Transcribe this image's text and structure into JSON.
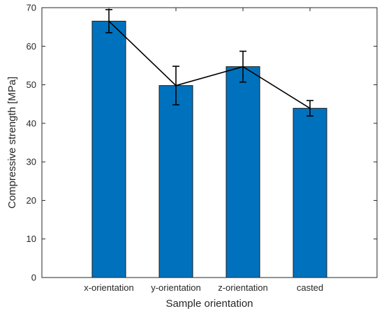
{
  "chart_data": {
    "type": "bar",
    "categories": [
      "x-orientation",
      "y-orientation",
      "z-orientation",
      "casted"
    ],
    "values": [
      66.5,
      49.8,
      54.7,
      43.9
    ],
    "error_low": [
      63.5,
      44.8,
      50.7,
      41.9
    ],
    "error_high": [
      69.5,
      54.8,
      58.7,
      45.9
    ],
    "line_overlay": true,
    "xlabel": "Sample orientation",
    "ylabel": "Compressive strength [MPa]",
    "ylim": [
      0,
      70
    ],
    "yticks": [
      "0",
      "10",
      "20",
      "30",
      "40",
      "50",
      "60",
      "70"
    ],
    "grid": false,
    "colors": {
      "bar": "#0072BD",
      "line": "#000000"
    }
  }
}
